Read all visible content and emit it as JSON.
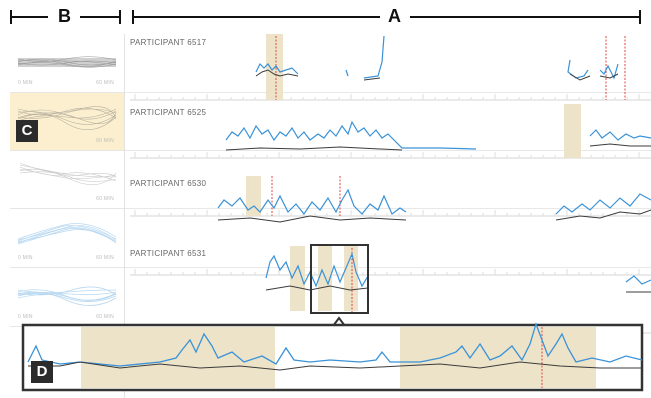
{
  "header": {
    "left_letter": "B",
    "right_letter": "A"
  },
  "thumbnails": [
    {
      "start": "0 MIN",
      "end": "60 MIN",
      "style": "gray-dense",
      "selected": false
    },
    {
      "start": "",
      "end": "60 MIN",
      "style": "gray",
      "selected": true
    },
    {
      "start": "",
      "end": "60 MIN",
      "style": "gray-light",
      "selected": false
    },
    {
      "start": "0 MIN",
      "end": "60 MIN",
      "style": "blue",
      "selected": false
    },
    {
      "start": "0 MIN",
      "end": "60 MIN",
      "style": "blue-dense",
      "selected": false
    }
  ],
  "participants": [
    {
      "label": "PARTICIPANT 6517"
    },
    {
      "label": "PARTICIPANT 6525"
    },
    {
      "label": "PARTICIPANT 6530"
    },
    {
      "label": "PARTICIPANT 6531"
    }
  ],
  "badges": {
    "c": "C",
    "d": "D"
  },
  "colors": {
    "blue": "#3a92d8",
    "dark": "#3b3b3b",
    "highlight": "#ece3c8",
    "selected_row": "#fbefcf",
    "marker": "#e04545"
  }
}
